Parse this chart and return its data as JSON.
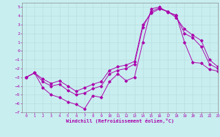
{
  "xlabel": "Windchill (Refroidissement éolien,°C)",
  "background_color": "#c8eef0",
  "line_color": "#aa00aa",
  "grid_color": "#b8dde0",
  "xlim": [
    -0.5,
    23
  ],
  "ylim": [
    -7,
    5.5
  ],
  "yticks": [
    -7,
    -6,
    -5,
    -4,
    -3,
    -2,
    -1,
    0,
    1,
    2,
    3,
    4,
    5
  ],
  "xticks": [
    0,
    1,
    2,
    3,
    4,
    5,
    6,
    7,
    8,
    9,
    10,
    11,
    12,
    13,
    14,
    15,
    16,
    17,
    18,
    19,
    20,
    21,
    22,
    23
  ],
  "line1_x": [
    0,
    1,
    2,
    3,
    4,
    5,
    6,
    7,
    8,
    9,
    10,
    11,
    12,
    13,
    14,
    15,
    16,
    17,
    18,
    19,
    20,
    21,
    22,
    23
  ],
  "line1_y": [
    -3.0,
    -2.5,
    -4.2,
    -5.0,
    -5.3,
    -5.8,
    -6.1,
    -6.6,
    -5.1,
    -5.3,
    -3.5,
    -2.6,
    -3.4,
    -3.0,
    1.0,
    4.8,
    5.0,
    4.4,
    4.1,
    1.0,
    -1.3,
    -1.4,
    -2.1,
    -2.3
  ],
  "line2_x": [
    0,
    1,
    2,
    3,
    4,
    5,
    6,
    7,
    8,
    9,
    10,
    11,
    12,
    13,
    14,
    15,
    16,
    17,
    18,
    19,
    20,
    21,
    22,
    23
  ],
  "line2_y": [
    -3.0,
    -2.5,
    -3.5,
    -4.0,
    -3.8,
    -4.5,
    -5.0,
    -4.8,
    -4.3,
    -4.0,
    -2.6,
    -2.2,
    -2.0,
    -1.5,
    2.7,
    4.5,
    4.9,
    4.5,
    4.0,
    2.0,
    1.5,
    0.5,
    -1.5,
    -2.0
  ],
  "line3_x": [
    0,
    1,
    2,
    3,
    4,
    5,
    6,
    7,
    8,
    9,
    10,
    11,
    12,
    13,
    14,
    15,
    16,
    17,
    18,
    19,
    20,
    21,
    22,
    23
  ],
  "line3_y": [
    -3.0,
    -2.5,
    -3.2,
    -3.7,
    -3.4,
    -4.0,
    -4.6,
    -4.2,
    -3.8,
    -3.5,
    -2.2,
    -1.8,
    -1.6,
    -1.2,
    3.0,
    4.3,
    4.8,
    4.5,
    3.8,
    2.5,
    1.8,
    1.2,
    -1.0,
    -1.8
  ]
}
